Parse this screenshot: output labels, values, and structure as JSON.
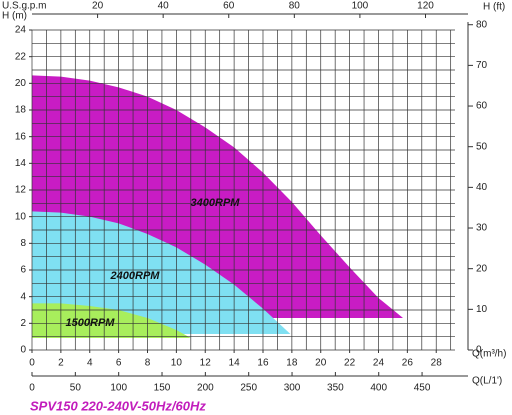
{
  "chart_data": {
    "type": "area",
    "subtitle": "SPV150  220-240V-50Hz/60Hz",
    "x_label": "Q(m³/h)",
    "y_label": "H (m)",
    "y2_label": "H (ft)",
    "xlim": [
      0,
      29.3
    ],
    "xticks": [
      0,
      2,
      4,
      6,
      8,
      10,
      12,
      14,
      16,
      18,
      20,
      22,
      24,
      26,
      28
    ],
    "ylim": [
      0,
      24
    ],
    "yticks": [
      0,
      2,
      4,
      6,
      8,
      10,
      12,
      14,
      16,
      18,
      20,
      22,
      24
    ],
    "y2lim": [
      0,
      78.7
    ],
    "y2ticks": [
      0,
      10,
      20,
      30,
      40,
      50,
      60,
      70,
      80
    ],
    "xgrid": [
      0,
      1,
      2,
      3,
      4,
      5,
      6,
      7,
      8,
      9,
      10,
      11,
      12,
      13,
      14,
      15,
      16,
      17,
      18,
      19,
      20,
      21,
      22,
      23,
      24,
      25,
      26,
      27,
      28,
      29
    ],
    "ygrid": [
      0,
      1,
      2,
      3,
      4,
      5,
      6,
      7,
      8,
      9,
      10,
      11,
      12,
      13,
      14,
      15,
      16,
      17,
      18,
      19,
      20,
      21,
      22,
      23,
      24
    ],
    "top_axis": {
      "label": "U.S.g.p.m",
      "lim": [
        0,
        129
      ],
      "ticks": [
        20,
        40,
        60,
        80,
        100,
        120
      ]
    },
    "bottom_axis2": {
      "label": "Q(L/1')",
      "lim": [
        0,
        488
      ],
      "ticks": [
        0,
        50,
        100,
        150,
        200,
        250,
        300,
        350,
        400,
        450
      ]
    },
    "series": [
      {
        "name": "3400RPM",
        "color": "#c81cc4",
        "x": [
          0,
          2,
          4,
          6,
          8,
          10,
          12,
          14,
          16,
          18,
          20,
          22,
          24,
          25.7
        ],
        "values": [
          20.6,
          20.5,
          20.2,
          19.7,
          19,
          18,
          16.7,
          15.2,
          13.3,
          11.1,
          8.6,
          6.2,
          3.9,
          2.4
        ]
      },
      {
        "name": "2400RPM",
        "color": "#7fe0f2",
        "x": [
          0,
          2,
          4,
          6,
          8,
          10,
          12,
          14,
          16,
          17.9
        ],
        "values": [
          10.4,
          10.3,
          10,
          9.5,
          8.7,
          7.7,
          6.4,
          4.9,
          3.1,
          1.2
        ]
      },
      {
        "name": "1500RPM",
        "color": "#a8ee5c",
        "x": [
          0,
          2,
          4,
          6,
          8,
          10,
          11
        ],
        "values": [
          3.5,
          3.5,
          3.3,
          3,
          2.4,
          1.5,
          0.9
        ]
      }
    ]
  }
}
